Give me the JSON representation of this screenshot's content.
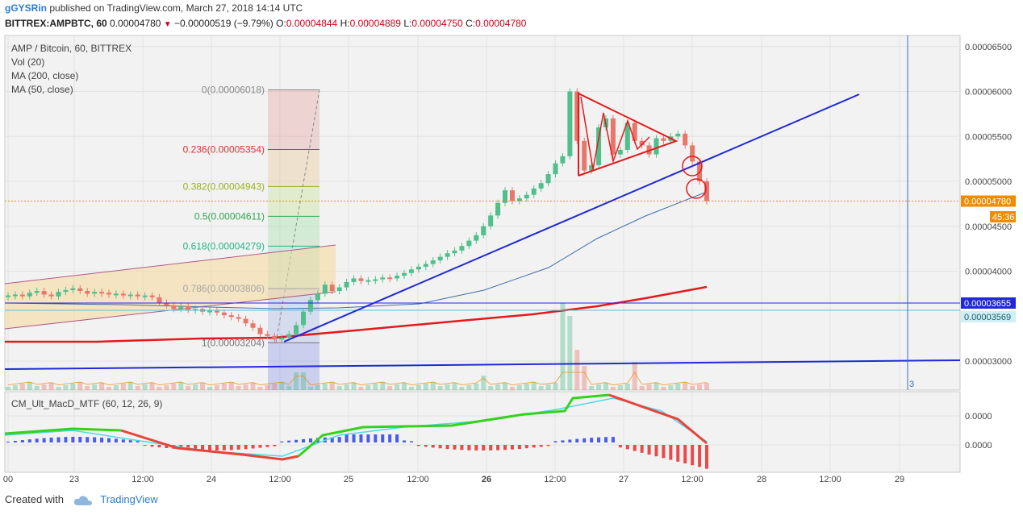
{
  "header": {
    "user": "gGYSRin",
    "published": "published on TradingView.com, March 27, 2018 14:14 UTC",
    "symbol": "BITTREX:AMPBTC, 60",
    "last": "0.00004780",
    "change": "−0.00000519 (−9.79%)",
    "o_label": "O:",
    "o_value": "0.00004844",
    "h_label": "H:",
    "h_value": "0.00004889",
    "l_label": "L:",
    "l_value": "0.00004750",
    "c_label": "C:",
    "c_value": "0.00004780"
  },
  "legend": {
    "title": "AMP / Bitcoin, 60, BITTREX",
    "vol": "Vol (20)",
    "ma200": "MA (200, close)",
    "ma50": "MA (50, close)"
  },
  "macd_legend": "CM_Ult_MacD_MTF (60, 12, 26, 9)",
  "footer": {
    "created": "Created with",
    "brand": "TradingView"
  },
  "colors": {
    "up": "#4fbf8b",
    "down": "#e8776b",
    "ma200": "#e31a1c",
    "ma50": "#3f6db0",
    "trend": "#1f2ad6",
    "pennant": "#e31a1c",
    "macd_up": "#35d21d",
    "macd_down": "#e8443a",
    "signal": "#4fd8e8",
    "hist_up": "#4a5ce8",
    "hist_down": "#e84a4a",
    "price_line": "#f08c00"
  },
  "chart_data": {
    "type": "candlestick",
    "price_axis": {
      "ticks": [
        "0.00006500",
        "0.00006000",
        "0.00005500",
        "0.00005000",
        "0.00004500",
        "0.00004000",
        "0.00003000"
      ],
      "range": [
        2.62e-05,
        6.65e-05
      ]
    },
    "price_labels": {
      "last": "0.00004780",
      "countdown": "45:36",
      "level1": "0.00003655",
      "level2": "0.00003569"
    },
    "time_axis": [
      "00",
      "23",
      "12:00",
      "24",
      "12:00",
      "25",
      "12:00",
      "26",
      "12:00",
      "27",
      "12:00",
      "28",
      "12:00",
      "29"
    ],
    "time_axis_bold": [
      "26"
    ],
    "fibonacci": [
      {
        "label": "0(0.00006018)",
        "value": 6.018e-05
      },
      {
        "label": "0.236(0.00005354)",
        "value": 5.354e-05
      },
      {
        "label": "0.382(0.00004943)",
        "value": 4.943e-05
      },
      {
        "label": "0.5(0.00004611)",
        "value": 4.611e-05
      },
      {
        "label": "0.618(0.00004279)",
        "value": 4.279e-05
      },
      {
        "label": "0.786(0.00003806)",
        "value": 3.806e-05
      },
      {
        "label": "1(0.00003204)",
        "value": 3.204e-05
      }
    ],
    "vertical_marker_label": "3",
    "macd_axis": {
      "ticks": [
        "0.0000",
        "0.0000"
      ]
    },
    "candles_close": [
      3.73e-05,
      3.74e-05,
      3.72e-05,
      3.76e-05,
      3.78e-05,
      3.74e-05,
      3.72e-05,
      3.77e-05,
      3.79e-05,
      3.81e-05,
      3.78e-05,
      3.75e-05,
      3.77e-05,
      3.76e-05,
      3.74e-05,
      3.75e-05,
      3.73e-05,
      3.74e-05,
      3.72e-05,
      3.73e-05,
      3.71e-05,
      3.65e-05,
      3.62e-05,
      3.58e-05,
      3.61e-05,
      3.57e-05,
      3.58e-05,
      3.55e-05,
      3.56e-05,
      3.54e-05,
      3.51e-05,
      3.49e-05,
      3.47e-05,
      3.42e-05,
      3.37e-05,
      3.3e-05,
      3.28e-05,
      3.24e-05,
      3.26e-05,
      3.3e-05,
      3.4e-05,
      3.55e-05,
      3.68e-05,
      3.75e-05,
      3.85e-05,
      3.78e-05,
      3.82e-05,
      3.88e-05,
      3.92e-05,
      3.89e-05,
      3.9e-05,
      3.91e-05,
      3.93e-05,
      3.92e-05,
      3.95e-05,
      3.98e-05,
      4.02e-05,
      4.05e-05,
      4.08e-05,
      4.12e-05,
      4.16e-05,
      4.2e-05,
      4.23e-05,
      4.28e-05,
      4.34e-05,
      4.4e-05,
      4.5e-05,
      4.62e-05,
      4.76e-05,
      4.9e-05,
      4.78e-05,
      4.81e-05,
      4.85e-05,
      4.92e-05,
      4.98e-05,
      5.08e-05,
      5.2e-05,
      5.28e-05,
      6e-05,
      5.45e-05,
      5.12e-05,
      5.18e-05,
      5.6e-05,
      5.7e-05,
      5.3e-05,
      5.35e-05,
      5.65e-05,
      5.45e-05,
      5.4e-05,
      5.3e-05,
      5.48e-05,
      5.45e-05,
      5.5e-05,
      5.53e-05,
      5.4e-05,
      5.22e-05,
      5e-05,
      4.78e-05
    ]
  }
}
